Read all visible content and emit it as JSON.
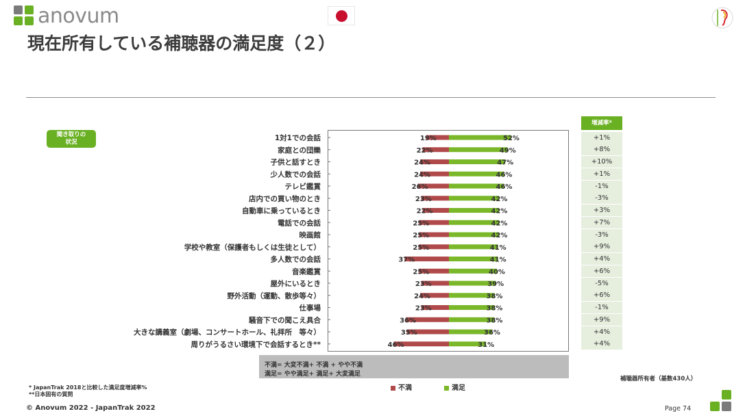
{
  "brand": {
    "logo_text": "anovum",
    "logo_color": "#8a8a8a",
    "square_color_green": "#6ab023",
    "square_color_gray": "#7b7b7b"
  },
  "flag_icon": "japan-flag-icon",
  "anima_logo_icon": "anima-ear-logo-icon",
  "title": "現在所有している補聴器の満足度（２）",
  "badge": {
    "line1": "聞き取りの",
    "line2": "状況"
  },
  "colors": {
    "dissatisfied": "#b04a4a",
    "satisfied": "#7ab82a",
    "accent_green": "#6ab023",
    "rate_bg": "#e6eede"
  },
  "chart_data": {
    "type": "bar",
    "orientation": "horizontal-diverging",
    "categories": [
      "1対1での会話",
      "家庭との団欒",
      "子供と話すとき",
      "少人数での会話",
      "テレビ鑑賞",
      "店内での買い物のとき",
      "自動車に乗っているとき",
      "電話での会話",
      "映画館",
      "学校や教室（保護者もしくは生徒として）",
      "多人数での会話",
      "音楽鑑賞",
      "屋外にいるとき",
      "野外活動（運動、散歩等々）",
      "仕事場",
      "騒音下での聞こえ具合",
      "大きな講義室（劇場、コンサートホール、礼拝所　等々）",
      "周りがうるさい環境下で会話するとき**"
    ],
    "series": [
      {
        "name": "不満",
        "values": [
          19,
          22,
          24,
          24,
          26,
          23,
          22,
          25,
          25,
          25,
          37,
          25,
          23,
          24,
          23,
          36,
          35,
          46
        ]
      },
      {
        "name": "満足",
        "values": [
          52,
          49,
          47,
          46,
          46,
          42,
          42,
          42,
          42,
          41,
          41,
          40,
          39,
          38,
          38,
          38,
          36,
          31
        ]
      }
    ],
    "value_labels": {
      "dissatisfied": [
        "19%",
        "22%",
        "24%",
        "24%",
        "26%",
        "23%",
        "22%",
        "25%",
        "25%",
        "25%",
        "37%",
        "25%",
        "23%",
        "24%",
        "23%",
        "36%",
        "35%",
        "46%"
      ],
      "satisfied": [
        "52%",
        "49%",
        "47%",
        "46%",
        "46%",
        "42%",
        "42%",
        "42%",
        "42%",
        "41%",
        "41%",
        "40%",
        "39%",
        "38%",
        "38%",
        "38%",
        "36%",
        "31%"
      ]
    },
    "increase_rate": {
      "header": "増減率*",
      "values": [
        "+1%",
        "+8%",
        "+10%",
        "+1%",
        "-1%",
        "-3%",
        "+3%",
        "+7%",
        "-3%",
        "+9%",
        "+4%",
        "+6%",
        "-5%",
        "+6%",
        "-1%",
        "+9%",
        "+4%",
        "+4%"
      ]
    },
    "legend": [
      {
        "label": "不満",
        "color": "#b04a4a"
      },
      {
        "label": "満足",
        "color": "#7ab82a"
      }
    ],
    "xlim": [
      -60,
      60
    ],
    "grid": false
  },
  "definitions": {
    "line1": "不満= 大変不満+ 不満 + やや不満",
    "line2": "満足= やや満足+ 満足+ 大変満足"
  },
  "base_note": "補聴器所有者（基数430人）",
  "footnotes": {
    "line1": "* JapanTrak 2018と比較した満足度増減率%",
    "line2": "**日本固有の質問"
  },
  "footer": "© Anovum 2022 - JapanTrak 2022",
  "page": "Page 74"
}
